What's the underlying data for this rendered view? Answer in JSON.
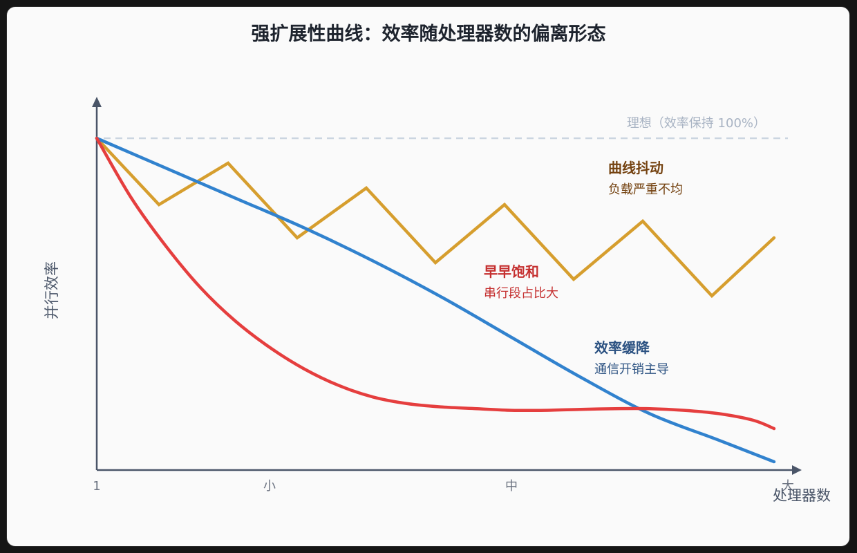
{
  "chart_data": {
    "type": "line",
    "title": "强扩展性曲线：效率随处理器数的偏离形态",
    "xlabel": "处理器数",
    "ylabel": "并行效率",
    "x_ticks": [
      "1",
      "小",
      "中",
      "大"
    ],
    "x_tick_positions": [
      0,
      0.25,
      0.6,
      1.0
    ],
    "ylim": [
      0,
      1.2
    ],
    "ideal": {
      "value": 1.0,
      "label": "理想（效率保持 100%）"
    },
    "series": [
      {
        "name": "曲线抖动",
        "color": "#d69e2e",
        "x": [
          0,
          0.09,
          0.19,
          0.29,
          0.39,
          0.49,
          0.59,
          0.69,
          0.79,
          0.89,
          0.98
        ],
        "y": [
          1.0,
          0.8,
          0.925,
          0.7,
          0.85,
          0.625,
          0.8,
          0.575,
          0.75,
          0.525,
          0.7
        ]
      },
      {
        "name": "效率缓降",
        "color": "#3182ce",
        "x": [
          0,
          0.1,
          0.2,
          0.3,
          0.4,
          0.5,
          0.6,
          0.7,
          0.8,
          0.9,
          0.98
        ],
        "y": [
          1.0,
          0.91,
          0.82,
          0.73,
          0.63,
          0.52,
          0.4,
          0.28,
          0.17,
          0.09,
          0.025
        ]
      },
      {
        "name": "早早饱和",
        "color": "#e53e3e",
        "x": [
          0,
          0.05,
          0.1,
          0.15,
          0.2,
          0.25,
          0.3,
          0.35,
          0.4,
          0.45,
          0.5,
          0.55,
          0.6,
          0.65,
          0.7,
          0.75,
          0.8,
          0.85,
          0.9,
          0.95,
          0.98
        ],
        "y": [
          1.0,
          0.82,
          0.675,
          0.55,
          0.45,
          0.37,
          0.305,
          0.255,
          0.22,
          0.2,
          0.19,
          0.185,
          0.18,
          0.18,
          0.183,
          0.185,
          0.185,
          0.18,
          0.17,
          0.15,
          0.125
        ]
      }
    ],
    "annotations": [
      {
        "title": "曲线抖动",
        "subtitle": "负载严重不均",
        "color": "#744210"
      },
      {
        "title": "早早饱和",
        "subtitle": "串行段占比大",
        "color": "#c53030"
      },
      {
        "title": "效率缓降",
        "subtitle": "通信开销主导",
        "color": "#2c5282"
      }
    ]
  }
}
